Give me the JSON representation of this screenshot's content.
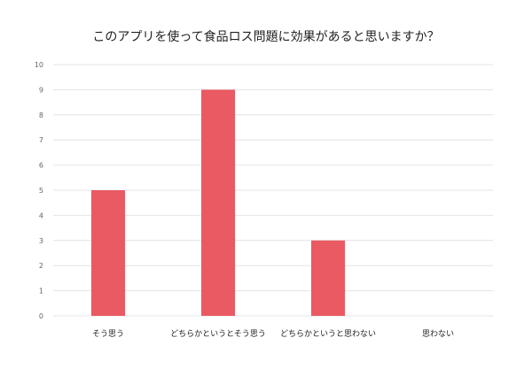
{
  "chart_data": {
    "type": "bar",
    "title": "このアプリを使って食品ロス問題に効果があると思いますか？",
    "categories": [
      "そう思う",
      "どちらかというとそう思う",
      "どちらかというと思わない",
      "思わない"
    ],
    "values": [
      5,
      9,
      3,
      0
    ],
    "ylim": [
      0,
      10
    ],
    "yticks": [
      0,
      1,
      2,
      3,
      4,
      5,
      6,
      7,
      8,
      9,
      10
    ],
    "xlabel": "",
    "ylabel": "",
    "grid": true,
    "legend": "none"
  },
  "colors": {
    "bar": "#e95a62",
    "grid": "#e4e4e4",
    "tick_text": "#666666",
    "category_text": "#222222"
  }
}
